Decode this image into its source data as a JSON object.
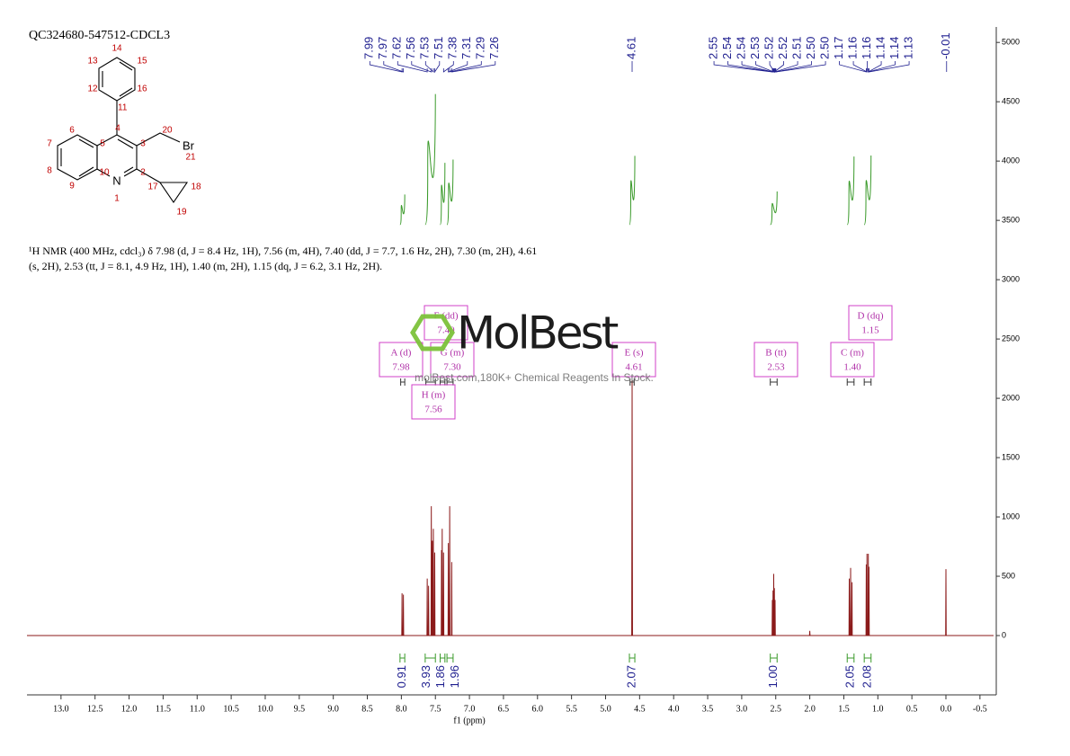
{
  "chart_data": {
    "type": "line",
    "title": "QC324680-547512-CDCL3",
    "xlabel": "f1 (ppm)",
    "color": "#8b1a1a",
    "xlim": [
      13.5,
      -0.7
    ],
    "ylim": [
      -500,
      5100
    ],
    "xticks": [
      {
        "value": 13,
        "label": "13.0"
      },
      12.5,
      {
        "value": 12,
        "label": "12.0"
      },
      11.5,
      {
        "value": 11,
        "label": "11.0"
      },
      10.5,
      {
        "value": 10,
        "label": "10.0"
      },
      9.5,
      {
        "value": 9,
        "label": "9.0"
      },
      8.5,
      {
        "value": 8,
        "label": "8.0"
      },
      7.5,
      {
        "value": 7,
        "label": "7.0"
      },
      6.5,
      {
        "value": 6,
        "label": "6.0"
      },
      5.5,
      {
        "value": 5,
        "label": "5.0"
      },
      4.5,
      {
        "value": 4,
        "label": "4.0"
      },
      3.5,
      {
        "value": 3,
        "label": "3.0"
      },
      2.5,
      {
        "value": 2,
        "label": "2.0"
      },
      1.5,
      {
        "value": 1,
        "label": "1.0"
      },
      0.5,
      {
        "value": 0,
        "label": "0.0"
      },
      -0.5
    ],
    "yticks": [
      0,
      500,
      1000,
      1500,
      2000,
      2500,
      3000,
      3500,
      4000,
      4500,
      5000
    ],
    "x": [
      13.5,
      8.0,
      7.994,
      7.99,
      7.986,
      7.974,
      7.97,
      7.966,
      7.624,
      7.62,
      7.616,
      7.604,
      7.6,
      7.596,
      7.564,
      7.56,
      7.556,
      7.549,
      7.545,
      7.541,
      7.534,
      7.53,
      7.526,
      7.514,
      7.51,
      7.506,
      7.414,
      7.41,
      7.406,
      7.404,
      7.4,
      7.396,
      7.384,
      7.38,
      7.376,
      7.314,
      7.31,
      7.306,
      7.294,
      7.29,
      7.286,
      7.264,
      7.26,
      7.256,
      4.616,
      4.61,
      4.604,
      2.554,
      2.55,
      2.546,
      2.544,
      2.54,
      2.536,
      2.534,
      2.53,
      2.526,
      2.524,
      2.52,
      2.516,
      2.514,
      2.51,
      2.506,
      2.004,
      2.0,
      1.996,
      1.424,
      1.42,
      1.416,
      1.404,
      1.4,
      1.396,
      1.384,
      1.38,
      1.376,
      1.174,
      1.17,
      1.166,
      1.164,
      1.16,
      1.156,
      1.144,
      1.14,
      1.136,
      1.134,
      1.13,
      1.126,
      0.004,
      0.0,
      -0.004,
      -0.7
    ],
    "values": [
      0,
      0,
      0,
      356,
      0,
      0,
      345,
      0,
      0,
      480,
      0,
      0,
      420,
      0,
      0,
      1090,
      0,
      0,
      800,
      0,
      0,
      900,
      0,
      0,
      700,
      0,
      0,
      720,
      0,
      0,
      900,
      0,
      0,
      700,
      0,
      0,
      780,
      0,
      0,
      1090,
      0,
      0,
      620,
      0,
      0,
      2150,
      0,
      0,
      300,
      0,
      0,
      380,
      0,
      0,
      520,
      0,
      0,
      400,
      0,
      0,
      300,
      0,
      0,
      40,
      0,
      0,
      480,
      0,
      0,
      570,
      0,
      0,
      450,
      0,
      0,
      600,
      0,
      0,
      690,
      0,
      0,
      690,
      0,
      0,
      580,
      0,
      0,
      560,
      0,
      0
    ],
    "peak_labels": {
      "values": [
        7.99,
        7.97,
        7.62,
        7.56,
        7.53,
        7.51,
        7.38,
        7.31,
        7.29,
        7.26,
        4.61,
        2.55,
        2.54,
        2.54,
        2.53,
        2.52,
        2.52,
        2.51,
        2.5,
        2.5,
        1.17,
        1.16,
        1.16,
        1.14,
        1.14,
        1.13,
        -0.01
      ],
      "value_labels": [
        "7.99",
        "7.97",
        "7.62",
        "7.56",
        "7.53",
        "7.51",
        "7.38",
        "7.31",
        "7.29",
        "7.26",
        "4.61",
        "2.55",
        "2.54",
        "2.54",
        "2.53",
        "2.52",
        "2.52",
        "2.51",
        "2.50",
        "2.50",
        "1.17",
        "1.16",
        "1.16",
        "1.14",
        "1.14",
        "1.13",
        "-0.01"
      ]
    },
    "integrals": {
      "ranges": [
        [
          8.02,
          7.95
        ],
        [
          7.65,
          7.5
        ],
        [
          7.43,
          7.36
        ],
        [
          7.33,
          7.24
        ],
        [
          4.65,
          4.57
        ],
        [
          2.58,
          2.48
        ],
        [
          1.45,
          1.35
        ],
        [
          1.2,
          1.1
        ]
      ],
      "values": [
        0.91,
        3.93,
        1.86,
        1.96,
        2.07,
        1.0,
        2.05,
        2.08
      ],
      "value_labels": [
        "0.91",
        "3.93",
        "1.86",
        "1.96",
        "2.07",
        "1.00",
        "2.05",
        "2.08"
      ]
    },
    "multiplets": [
      {
        "name": "A (d)",
        "shift": "7.98",
        "range": [
          8.01,
          7.95
        ]
      },
      {
        "name": "F (dd)",
        "shift": "7.40",
        "range": [
          7.43,
          7.36
        ]
      },
      {
        "name": "G (m)",
        "shift": "7.30",
        "range": [
          7.33,
          7.24
        ]
      },
      {
        "name": "H (m)",
        "shift": "7.56",
        "range": [
          7.64,
          7.5
        ]
      },
      {
        "name": "E (s)",
        "shift": "4.61",
        "range": [
          4.64,
          4.58
        ]
      },
      {
        "name": "B (tt)",
        "shift": "2.53",
        "range": [
          2.58,
          2.48
        ]
      },
      {
        "name": "C (m)",
        "shift": "1.40",
        "range": [
          1.45,
          1.35
        ]
      },
      {
        "name": "D (dq)",
        "shift": "1.15",
        "range": [
          1.2,
          1.1
        ]
      }
    ]
  },
  "description": "¹H NMR (400 MHz, cdcl₃) δ 7.98 (d, J = 8.4 Hz, 1H), 7.56 (m, 4H), 7.40 (dd, J = 7.7, 1.6 Hz, 2H), 7.30 (m, 2H), 4.61 (s, 2H), 2.53 (tt, J = 8.1, 4.9 Hz, 1H), 1.40 (m, 2H), 1.15 (dq, J = 6.2, 3.1 Hz, 2H).",
  "structure": {
    "atoms": [
      "14",
      "13",
      "15",
      "12",
      "16",
      "11",
      "4",
      "3",
      "2",
      "1",
      "10",
      "5",
      "6",
      "7",
      "8",
      "9",
      "20",
      "21",
      "17",
      "18",
      "19"
    ],
    "nitrogen": "N",
    "bromine": "Br"
  },
  "watermark": {
    "brand": "MolBest",
    "tagline": "molBest.com,180K+ Chemical Reagents In Stock."
  }
}
